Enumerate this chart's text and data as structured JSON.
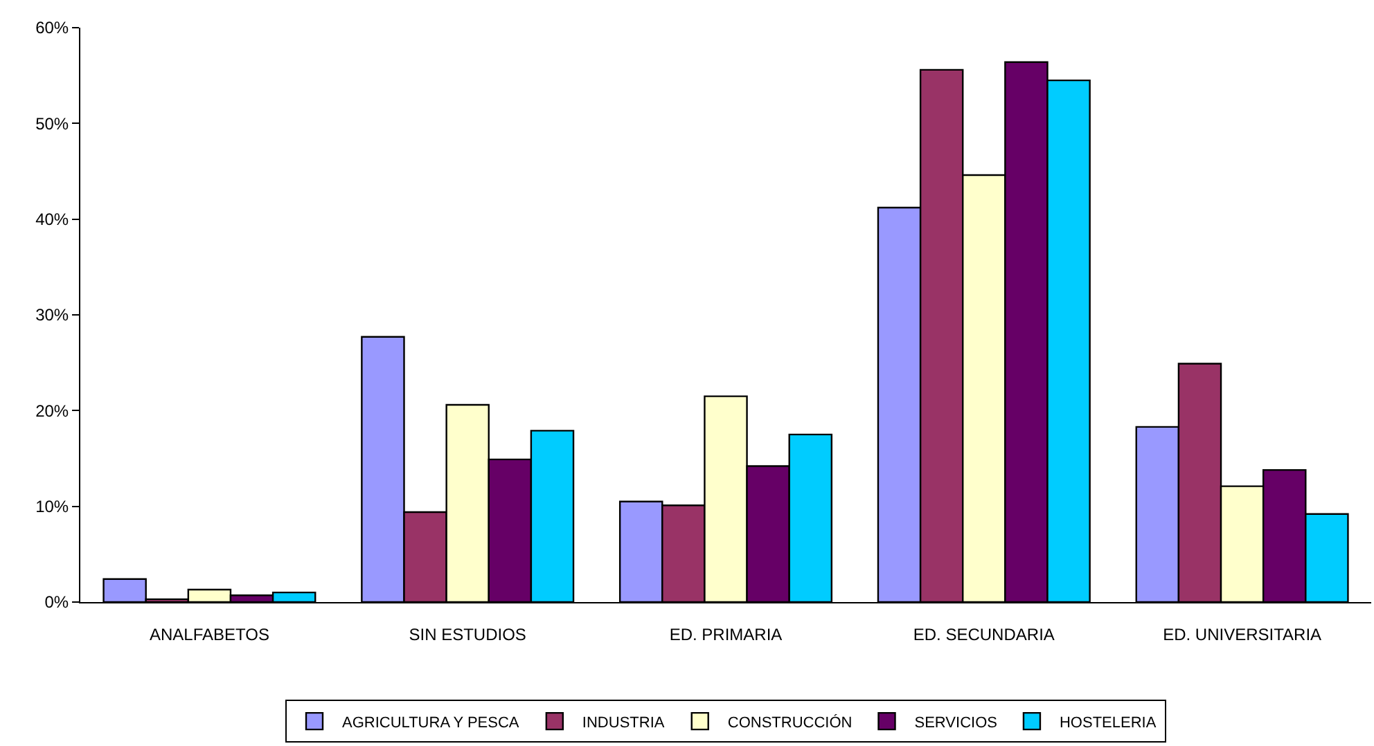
{
  "chart_data": {
    "type": "bar",
    "categories": [
      "ANALFABETOS",
      "SIN ESTUDIOS",
      "ED. PRIMARIA",
      "ED. SECUNDARIA",
      "ED. UNIVERSITARIA"
    ],
    "series": [
      {
        "name": "AGRICULTURA Y PESCA",
        "color": "#9999ff",
        "values": [
          2.4,
          27.7,
          10.5,
          41.2,
          18.3
        ]
      },
      {
        "name": "INDUSTRIA",
        "color": "#993366",
        "values": [
          0.3,
          9.4,
          10.1,
          55.6,
          24.9
        ]
      },
      {
        "name": "CONSTRUCCIÓN",
        "color": "#ffffcc",
        "values": [
          1.3,
          20.6,
          21.5,
          44.6,
          12.1
        ]
      },
      {
        "name": "SERVICIOS",
        "color": "#660066",
        "values": [
          0.7,
          14.9,
          14.2,
          56.4,
          13.8
        ]
      },
      {
        "name": "HOSTELERIA",
        "color": "#00ccff",
        "values": [
          1.0,
          17.9,
          17.5,
          54.5,
          9.2
        ]
      }
    ],
    "ylim": [
      0,
      60
    ],
    "yticks": [
      {
        "value": 0,
        "label": "0%"
      },
      {
        "value": 10,
        "label": "10%"
      },
      {
        "value": 20,
        "label": "20%"
      },
      {
        "value": 30,
        "label": "30%"
      },
      {
        "value": 40,
        "label": "40%"
      },
      {
        "value": 50,
        "label": "50%"
      },
      {
        "value": 60,
        "label": "60%"
      }
    ],
    "grid": false,
    "legend": "bottom"
  }
}
